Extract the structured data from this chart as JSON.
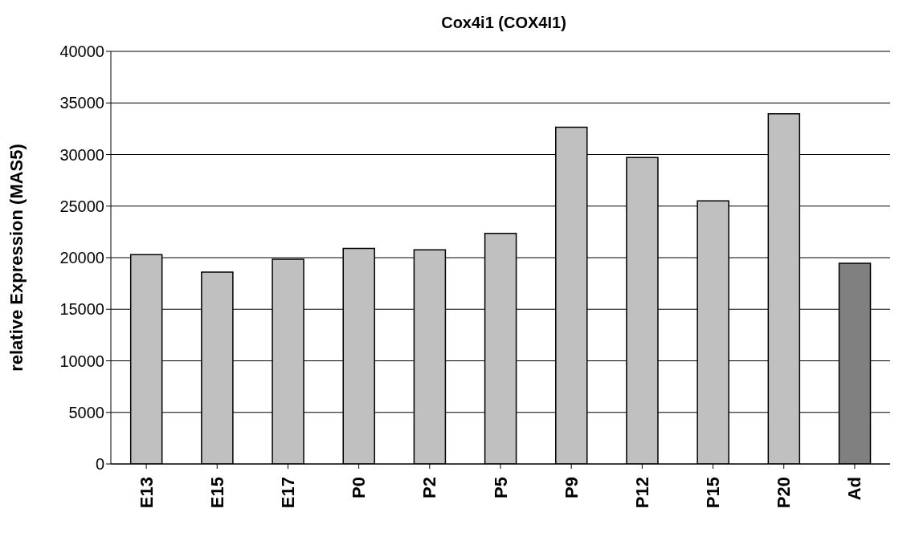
{
  "chart_data": {
    "type": "bar",
    "title": "Cox4i1 (COX4I1)",
    "ylabel": "relative Expression (MAS5)",
    "categories": [
      "E13",
      "E15",
      "E17",
      "P0",
      "P2",
      "P5",
      "P9",
      "P12",
      "P15",
      "P20",
      "Ad"
    ],
    "values": [
      20300,
      18600,
      19850,
      20900,
      20750,
      22350,
      32650,
      29700,
      25500,
      33950,
      19450
    ],
    "colors": [
      "#c0c0c0",
      "#c0c0c0",
      "#c0c0c0",
      "#c0c0c0",
      "#c0c0c0",
      "#c0c0c0",
      "#c0c0c0",
      "#c0c0c0",
      "#c0c0c0",
      "#c0c0c0",
      "#808080"
    ],
    "ylim": [
      0,
      40000
    ],
    "yticks": [
      0,
      5000,
      10000,
      15000,
      20000,
      25000,
      30000,
      35000,
      40000
    ],
    "grid": "y"
  }
}
